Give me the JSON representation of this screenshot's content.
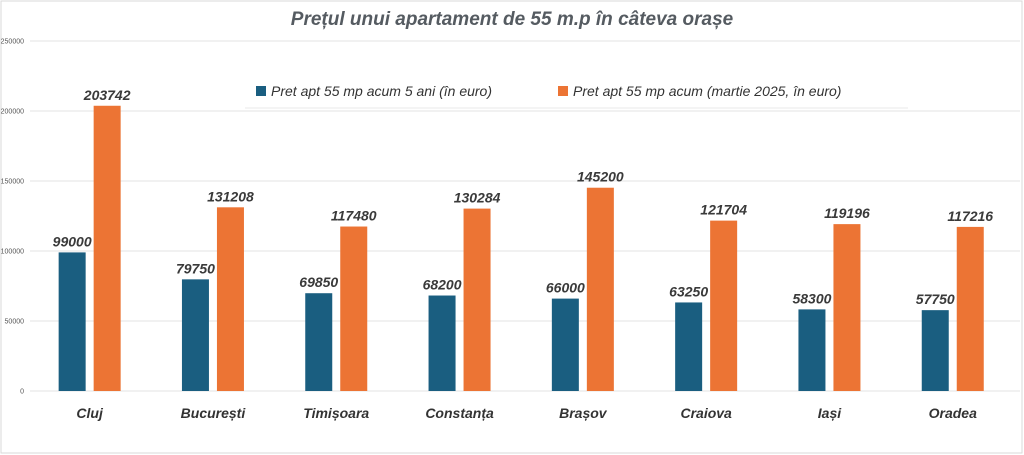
{
  "chart_data": {
    "type": "bar",
    "title": "Prețul unui apartament de 55 m.p în câteva orașe",
    "categories": [
      "Cluj",
      "București",
      "Timișoara",
      "Constanța",
      "Brașov",
      "Craiova",
      "Iași",
      "Oradea"
    ],
    "series": [
      {
        "name": "Pret apt 55 mp acum 5 ani (în euro)",
        "color": "#1a5e80",
        "values": [
          99000,
          79750,
          69850,
          68200,
          66000,
          63250,
          58300,
          57750
        ]
      },
      {
        "name": "Pret apt 55 mp acum (martie 2025, în euro)",
        "color": "#ec7434",
        "values": [
          203742,
          131208,
          117480,
          130284,
          145200,
          121704,
          119196,
          117216
        ]
      }
    ],
    "ylim": [
      0,
      250000
    ],
    "yticks": [
      "0",
      "50000",
      "100000",
      "150000",
      "200000",
      "250000"
    ],
    "grid": true,
    "legend_position": "top-center"
  }
}
